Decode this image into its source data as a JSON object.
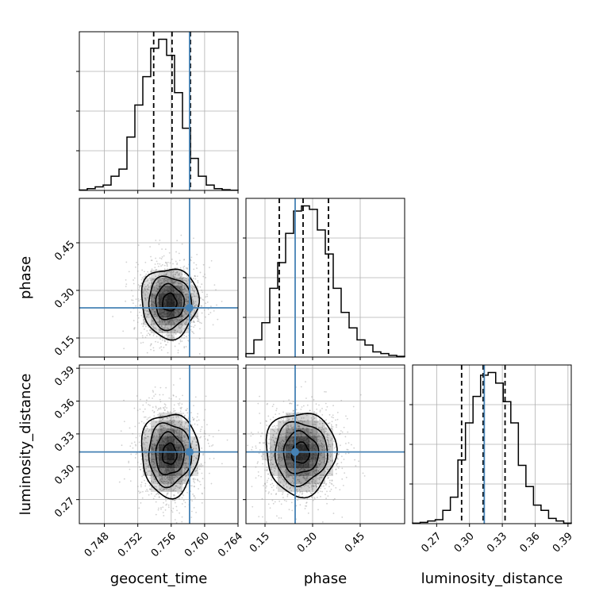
{
  "chart_data": {
    "type": "corner",
    "title": "",
    "parameters": [
      {
        "name": "geocent_time",
        "label": "geocent_time",
        "range": [
          0.745,
          0.764
        ],
        "ticks": [
          0.748,
          0.752,
          0.756,
          0.76,
          0.764
        ],
        "tick_labels": [
          "0.748",
          "0.752",
          "0.756",
          "0.760",
          "0.764"
        ],
        "truth": 0.7582,
        "quantiles": [
          0.7539,
          0.7561,
          0.7583
        ]
      },
      {
        "name": "phase",
        "label": "phase",
        "range": [
          0.09,
          0.59
        ],
        "ticks": [
          0.15,
          0.3,
          0.45
        ],
        "tick_labels": [
          "0.15",
          "0.30",
          "0.45"
        ],
        "truth": 0.245,
        "quantiles": [
          0.195,
          0.27,
          0.35
        ]
      },
      {
        "name": "luminosity_distance",
        "label": "luminosity_distance",
        "range": [
          0.248,
          0.393
        ],
        "ticks": [
          0.27,
          0.3,
          0.33,
          0.36,
          0.39
        ],
        "tick_labels": [
          "0.27",
          "0.30",
          "0.33",
          "0.36",
          "0.39"
        ],
        "truth": 0.3135,
        "quantiles": [
          0.2928,
          0.3125,
          0.3325
        ]
      }
    ],
    "histograms_1d": [
      {
        "param": "geocent_time",
        "values": [
          0.2,
          1,
          2,
          3,
          8,
          12,
          30,
          48,
          64,
          80,
          85,
          76,
          55,
          35,
          18,
          8,
          3,
          1,
          0.4,
          0.1
        ]
      },
      {
        "param": "phase",
        "values": [
          2,
          10,
          20,
          40,
          55,
          72,
          85,
          88,
          86,
          74,
          60,
          40,
          26,
          17,
          10,
          7,
          3,
          2,
          1,
          0.4
        ]
      },
      {
        "param": "luminosity_distance",
        "values": [
          0.2,
          0.5,
          1,
          1.5,
          5,
          10,
          24,
          38,
          48,
          56,
          57,
          53,
          46,
          38,
          22,
          14,
          7,
          5,
          2,
          1,
          0.2
        ]
      }
    ],
    "panels_2d": [
      {
        "x": "geocent_time",
        "y": "phase",
        "center": [
          0.7558,
          0.262
        ],
        "sigma": [
          0.0017,
          0.055
        ],
        "contour_levels": [
          "0.5 sigma",
          "1 sigma",
          "1.5 sigma",
          "2 sigma"
        ]
      },
      {
        "x": "geocent_time",
        "y": "luminosity_distance",
        "center": [
          0.7558,
          0.3115
        ],
        "sigma": [
          0.0017,
          0.019
        ],
        "contour_levels": [
          "0.5 sigma",
          "1 sigma",
          "1.5 sigma",
          "2 sigma"
        ]
      },
      {
        "x": "phase",
        "y": "luminosity_distance",
        "center": [
          0.262,
          0.3125
        ],
        "sigma": [
          0.055,
          0.019
        ],
        "contour_levels": [
          "0.5 sigma",
          "1 sigma",
          "1.5 sigma",
          "2 sigma"
        ]
      }
    ],
    "grid": true,
    "colors": {
      "hist": "#000000",
      "truth": "#4682b4",
      "density": "#000000",
      "grid": "#b0b0b0",
      "quantile": "#000000"
    }
  }
}
